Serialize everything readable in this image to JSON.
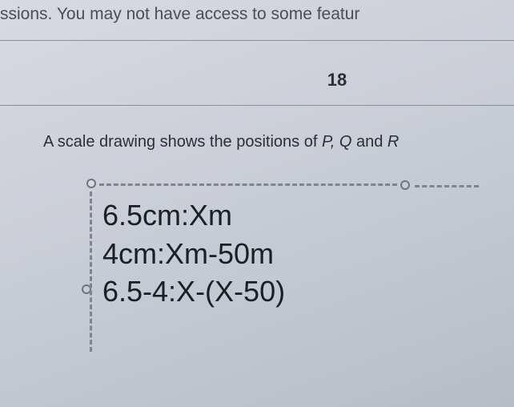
{
  "banner": {
    "partial_text": "ssions. You may not have access to some featur"
  },
  "question": {
    "number": "18",
    "prompt_prefix": "A scale drawing shows the positions of ",
    "prompt_vars": "P, Q and R",
    "prompt_vars_visible": "P, Q ",
    "prompt_and": "and ",
    "prompt_var_r": "R"
  },
  "equations": {
    "line1": "6.5cm:Xm",
    "line2": "4cm:Xm-50m",
    "line3": "6.5-4:X-(X-50)"
  }
}
